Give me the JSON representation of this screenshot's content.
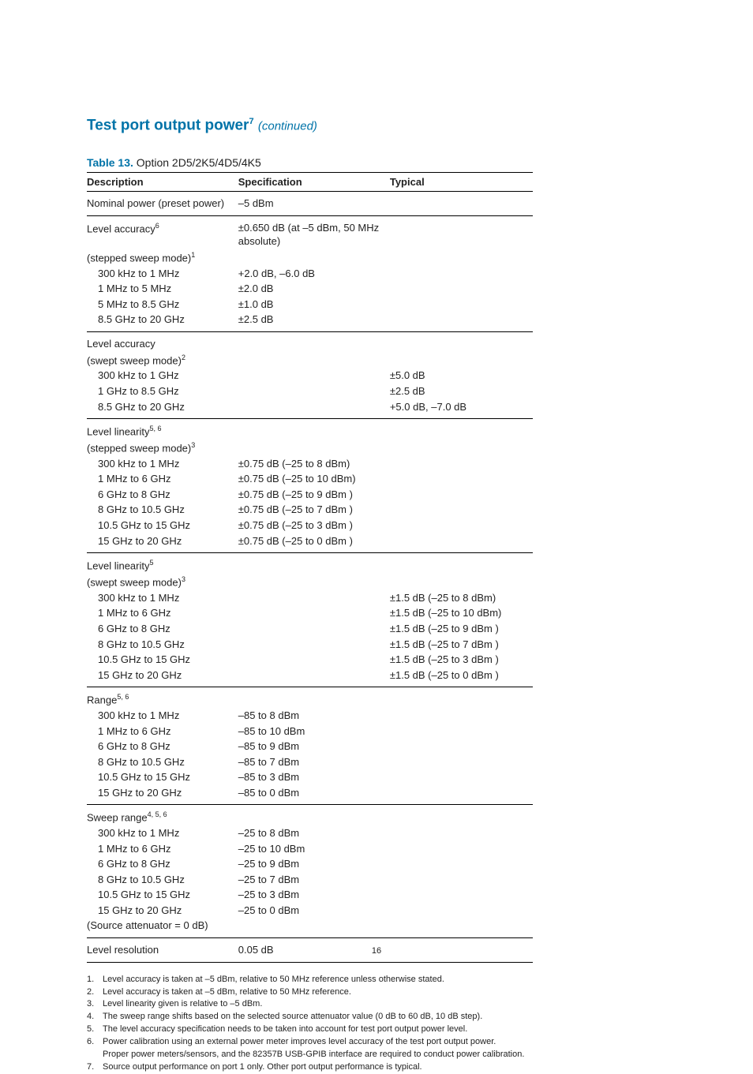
{
  "heading": {
    "text": "Test port output power",
    "sup": "7",
    "cont": "(continued)"
  },
  "table_caption": {
    "label": "Table 13.",
    "text": "Option 2D5/2K5/4D5/4K5"
  },
  "columns": {
    "c1": "Description",
    "c2": "Specification",
    "c3": "Typical"
  },
  "blocks": [
    {
      "rows": [
        {
          "d": "Nominal power (preset power)",
          "s": "–5 dBm",
          "t": ""
        }
      ]
    },
    {
      "rows": [
        {
          "d": "Level accuracy",
          "dsup": "6",
          "s": "±0.650 dB (at –5 dBm, 50 MHz absolute)",
          "t": ""
        },
        {
          "d": "(stepped sweep mode)",
          "dsup": "1",
          "s": "",
          "t": ""
        },
        {
          "d": "300 kHz to 1 MHz",
          "indent": true,
          "s": "+2.0 dB, –6.0 dB",
          "t": ""
        },
        {
          "d": "1 MHz to 5 MHz",
          "indent": true,
          "s": "±2.0 dB",
          "t": ""
        },
        {
          "d": "5 MHz to 8.5 GHz",
          "indent": true,
          "s": "±1.0 dB",
          "t": ""
        },
        {
          "d": "8.5 GHz to 20 GHz",
          "indent": true,
          "s": "±2.5 dB",
          "t": ""
        }
      ]
    },
    {
      "rows": [
        {
          "d": "Level accuracy",
          "s": "",
          "t": ""
        },
        {
          "d": "(swept sweep mode)",
          "dsup": "2",
          "s": "",
          "t": ""
        },
        {
          "d": "300 kHz to 1 GHz",
          "indent": true,
          "s": "",
          "t": "±5.0 dB"
        },
        {
          "d": "1 GHz to 8.5 GHz",
          "indent": true,
          "s": "",
          "t": "±2.5 dB"
        },
        {
          "d": "8.5 GHz to 20 GHz",
          "indent": true,
          "s": "",
          "t": "+5.0 dB, –7.0 dB"
        }
      ]
    },
    {
      "rows": [
        {
          "d": "Level linearity",
          "dsup": "5, 6",
          "s": "",
          "t": ""
        },
        {
          "d": "(stepped sweep mode)",
          "dsup": "3",
          "s": "",
          "t": ""
        },
        {
          "d": "300 kHz to 1 MHz",
          "indent": true,
          "s": "±0.75 dB (–25 to 8 dBm)",
          "t": ""
        },
        {
          "d": "1 MHz to 6 GHz",
          "indent": true,
          "s": "±0.75 dB (–25 to 10 dBm)",
          "t": ""
        },
        {
          "d": "6 GHz to 8 GHz",
          "indent": true,
          "s": "±0.75 dB (–25 to 9 dBm )",
          "t": ""
        },
        {
          "d": "8 GHz to 10.5 GHz",
          "indent": true,
          "s": "±0.75 dB (–25 to 7 dBm )",
          "t": ""
        },
        {
          "d": "10.5 GHz to 15 GHz",
          "indent": true,
          "s": "±0.75 dB (–25 to 3 dBm )",
          "t": ""
        },
        {
          "d": "15 GHz to 20 GHz",
          "indent": true,
          "s": "±0.75 dB (–25 to 0 dBm )",
          "t": ""
        }
      ]
    },
    {
      "rows": [
        {
          "d": "Level linearity",
          "dsup": "5",
          "s": "",
          "t": ""
        },
        {
          "d": "(swept sweep mode)",
          "dsup": "3",
          "s": "",
          "t": ""
        },
        {
          "d": "300 kHz to 1 MHz",
          "indent": true,
          "s": "",
          "t": "±1.5 dB (–25 to 8 dBm)"
        },
        {
          "d": "1 MHz to 6 GHz",
          "indent": true,
          "s": "",
          "t": "±1.5 dB (–25 to 10 dBm)"
        },
        {
          "d": "6 GHz to 8 GHz",
          "indent": true,
          "s": "",
          "t": "±1.5 dB (–25 to 9 dBm )"
        },
        {
          "d": "8 GHz to 10.5 GHz",
          "indent": true,
          "s": "",
          "t": "±1.5 dB (–25 to 7 dBm )"
        },
        {
          "d": "10.5 GHz to 15 GHz",
          "indent": true,
          "s": "",
          "t": "±1.5 dB (–25 to 3 dBm )"
        },
        {
          "d": "15 GHz to 20 GHz",
          "indent": true,
          "s": "",
          "t": "±1.5 dB (–25 to 0 dBm )"
        }
      ]
    },
    {
      "rows": [
        {
          "d": "Range",
          "dsup": "5, 6",
          "s": "",
          "t": ""
        },
        {
          "d": "300 kHz to 1 MHz",
          "indent": true,
          "s": "–85 to 8 dBm",
          "t": ""
        },
        {
          "d": "1 MHz to 6 GHz",
          "indent": true,
          "s": "–85 to 10 dBm",
          "t": ""
        },
        {
          "d": "6 GHz to 8 GHz",
          "indent": true,
          "s": "–85 to 9 dBm",
          "t": ""
        },
        {
          "d": "8 GHz to 10.5 GHz",
          "indent": true,
          "s": "–85 to 7 dBm",
          "t": ""
        },
        {
          "d": "10.5 GHz to 15 GHz",
          "indent": true,
          "s": "–85 to 3 dBm",
          "t": ""
        },
        {
          "d": "15 GHz to 20 GHz",
          "indent": true,
          "s": "–85 to 0 dBm",
          "t": ""
        }
      ]
    },
    {
      "rows": [
        {
          "d": "Sweep range",
          "dsup": "4, 5, 6",
          "s": "",
          "t": ""
        },
        {
          "d": "300 kHz to 1 MHz",
          "indent": true,
          "s": "–25 to 8 dBm",
          "t": ""
        },
        {
          "d": "1 MHz to 6 GHz",
          "indent": true,
          "s": "–25 to 10 dBm",
          "t": ""
        },
        {
          "d": "6 GHz to 8 GHz",
          "indent": true,
          "s": "–25 to 9 dBm",
          "t": ""
        },
        {
          "d": "8 GHz to 10.5 GHz",
          "indent": true,
          "s": "–25 to 7 dBm",
          "t": ""
        },
        {
          "d": "10.5 GHz to 15 GHz",
          "indent": true,
          "s": "–25 to 3 dBm",
          "t": ""
        },
        {
          "d": "15 GHz to 20 GHz",
          "indent": true,
          "s": "–25 to 0 dBm",
          "t": ""
        },
        {
          "d": "(Source attenuator = 0 dB)",
          "s": "",
          "t": ""
        }
      ]
    },
    {
      "rows": [
        {
          "d": "Level resolution",
          "s": "0.05 dB",
          "t": ""
        }
      ]
    }
  ],
  "footnotes": [
    {
      "n": "1.",
      "t": "Level accuracy is taken at –5 dBm, relative to 50 MHz reference unless otherwise stated."
    },
    {
      "n": "2.",
      "t": "Level accuracy is taken at –5 dBm, relative to 50 MHz reference."
    },
    {
      "n": "3.",
      "t": "Level linearity given is relative to –5 dBm."
    },
    {
      "n": "4.",
      "t": "The sweep range shifts based on the selected source attenuator value (0 dB to 60 dB, 10 dB step)."
    },
    {
      "n": "5.",
      "t": "The level accuracy specification needs to be taken into account for test port output power level."
    },
    {
      "n": "6.",
      "t": "Power calibration using an external power meter improves level accuracy of the test port output power."
    },
    {
      "n": "",
      "t": "Proper power meters/sensors, and the 82357B USB-GPIB interface are required to conduct power calibration."
    },
    {
      "n": "7.",
      "t": "Source output performance on port 1 only. Other port output performance is typical."
    }
  ],
  "page_number": "16"
}
